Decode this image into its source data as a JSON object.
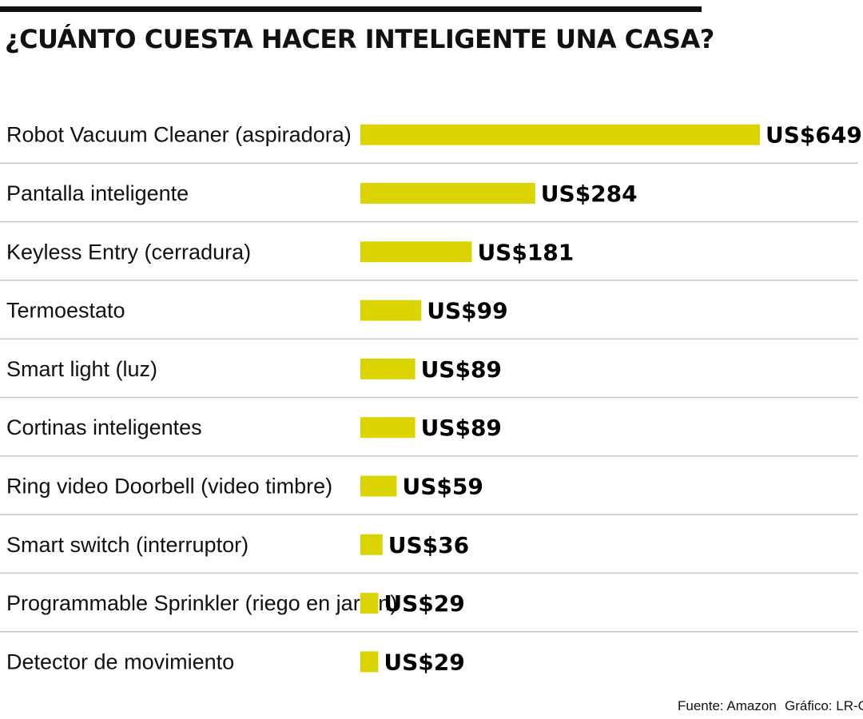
{
  "chart_data": {
    "type": "bar",
    "orientation": "horizontal",
    "title": "¿CUÁNTO CUESTA HACER INTELIGENTE UNA CASA?",
    "categories": [
      "Robot Vacuum Cleaner (aspiradora)",
      "Pantalla inteligente",
      "Keyless Entry (cerradura)",
      "Termoestato",
      "Smart light (luz)",
      "Cortinas inteligentes",
      "Ring video Doorbell (video timbre)",
      "Smart switch (interruptor)",
      "Programmable Sprinkler (riego en jardín)",
      "Detector de movimiento"
    ],
    "values": [
      649,
      284,
      181,
      99,
      89,
      89,
      59,
      36,
      29,
      29
    ],
    "value_labels": [
      "US$649",
      "US$284",
      "US$181",
      "US$99",
      "US$89",
      "US$89",
      "US$59",
      "US$36",
      "US$29",
      "US$29"
    ],
    "unit": "US$",
    "xlim": [
      0,
      649
    ],
    "grid": false,
    "bar_color": "#dcd400"
  },
  "footer": {
    "source": "Fuente: Amazon",
    "credit": "Gráfico: LR-GR"
  },
  "colors": {
    "bar": "#dcd400",
    "divider": "#c8c8c8",
    "text": "#111111"
  }
}
